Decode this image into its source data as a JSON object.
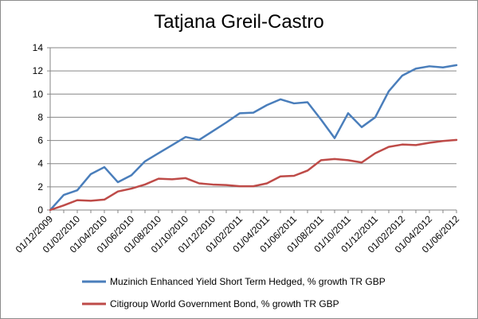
{
  "chart_data": {
    "type": "line",
    "title": "Tatjana Greil-Castro",
    "xlabel": "",
    "ylabel": "",
    "ylim": [
      0,
      14
    ],
    "yticks": [
      0,
      2,
      4,
      6,
      8,
      10,
      12,
      14
    ],
    "grid": true,
    "legend_position": "bottom",
    "x_tick_labels": [
      "01/12/2009",
      "01/02/2010",
      "01/04/2010",
      "01/06/2010",
      "01/08/2010",
      "01/10/2010",
      "01/12/2010",
      "01/02/2011",
      "01/04/2011",
      "01/06/2011",
      "01/08/2011",
      "01/10/2011",
      "01/12/2011",
      "01/02/2012",
      "01/04/2012",
      "01/06/2012"
    ],
    "x": [
      "2009-12",
      "2010-01",
      "2010-02",
      "2010-03",
      "2010-04",
      "2010-05",
      "2010-06",
      "2010-07",
      "2010-08",
      "2010-09",
      "2010-10",
      "2010-11",
      "2010-12",
      "2011-01",
      "2011-02",
      "2011-03",
      "2011-04",
      "2011-05",
      "2011-06",
      "2011-07",
      "2011-08",
      "2011-09",
      "2011-10",
      "2011-11",
      "2011-12",
      "2012-01",
      "2012-02",
      "2012-03",
      "2012-04",
      "2012-05",
      "2012-06"
    ],
    "series": [
      {
        "name": "Muzinich Enhanced Yield Short Term Hedged, % growth TR GBP",
        "color": "#4a7ebb",
        "values": [
          0.0,
          1.3,
          1.7,
          3.1,
          3.7,
          2.4,
          3.0,
          4.2,
          4.9,
          5.6,
          6.3,
          6.05,
          6.8,
          7.55,
          8.35,
          8.4,
          9.05,
          9.55,
          9.2,
          9.3,
          7.8,
          6.2,
          8.35,
          7.15,
          8.0,
          10.25,
          11.6,
          12.2,
          12.4,
          12.3,
          12.5
        ]
      },
      {
        "name": "Citigroup World Government Bond, % growth TR GBP",
        "color": "#be4b48",
        "values": [
          0.0,
          0.4,
          0.85,
          0.8,
          0.9,
          1.6,
          1.85,
          2.2,
          2.7,
          2.65,
          2.75,
          2.3,
          2.2,
          2.15,
          2.05,
          2.05,
          2.3,
          2.9,
          2.95,
          3.4,
          4.3,
          4.4,
          4.3,
          4.1,
          4.9,
          5.45,
          5.65,
          5.6,
          5.8,
          5.95,
          6.05
        ]
      }
    ]
  }
}
